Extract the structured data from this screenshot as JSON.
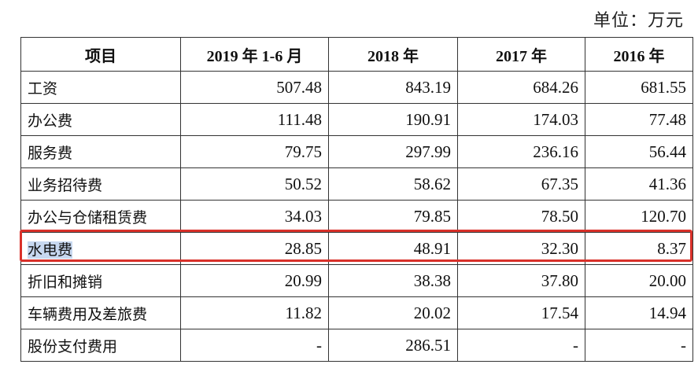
{
  "unit_label": "单位：万元",
  "table": {
    "headers": [
      "项目",
      "2019 年 1-6 月",
      "2018 年",
      "2017 年",
      "2016 年"
    ],
    "rows": [
      {
        "item": "工资",
        "values": [
          "507.48",
          "843.19",
          "684.26",
          "681.55"
        ]
      },
      {
        "item": "办公费",
        "values": [
          "111.48",
          "190.91",
          "174.03",
          "77.48"
        ]
      },
      {
        "item": "服务费",
        "values": [
          "79.75",
          "297.99",
          "236.16",
          "56.44"
        ]
      },
      {
        "item": "业务招待费",
        "values": [
          "50.52",
          "58.62",
          "67.35",
          "41.36"
        ]
      },
      {
        "item": "办公与仓储租赁费",
        "values": [
          "34.03",
          "79.85",
          "78.50",
          "120.70"
        ]
      },
      {
        "item": "水电费",
        "values": [
          "28.85",
          "48.91",
          "32.30",
          "8.37"
        ]
      },
      {
        "item": "折旧和摊销",
        "values": [
          "20.99",
          "38.38",
          "37.80",
          "20.00"
        ]
      },
      {
        "item": "车辆费用及差旅费",
        "values": [
          "11.82",
          "20.02",
          "17.54",
          "14.94"
        ]
      },
      {
        "item": "股份支付费用",
        "values": [
          "-",
          "286.51",
          "-",
          "-"
        ]
      }
    ],
    "highlighted_row": 5
  },
  "colors": {
    "highlight_border": "#d9312a",
    "text_selection": "#c7d8f0",
    "border": "#333333"
  }
}
